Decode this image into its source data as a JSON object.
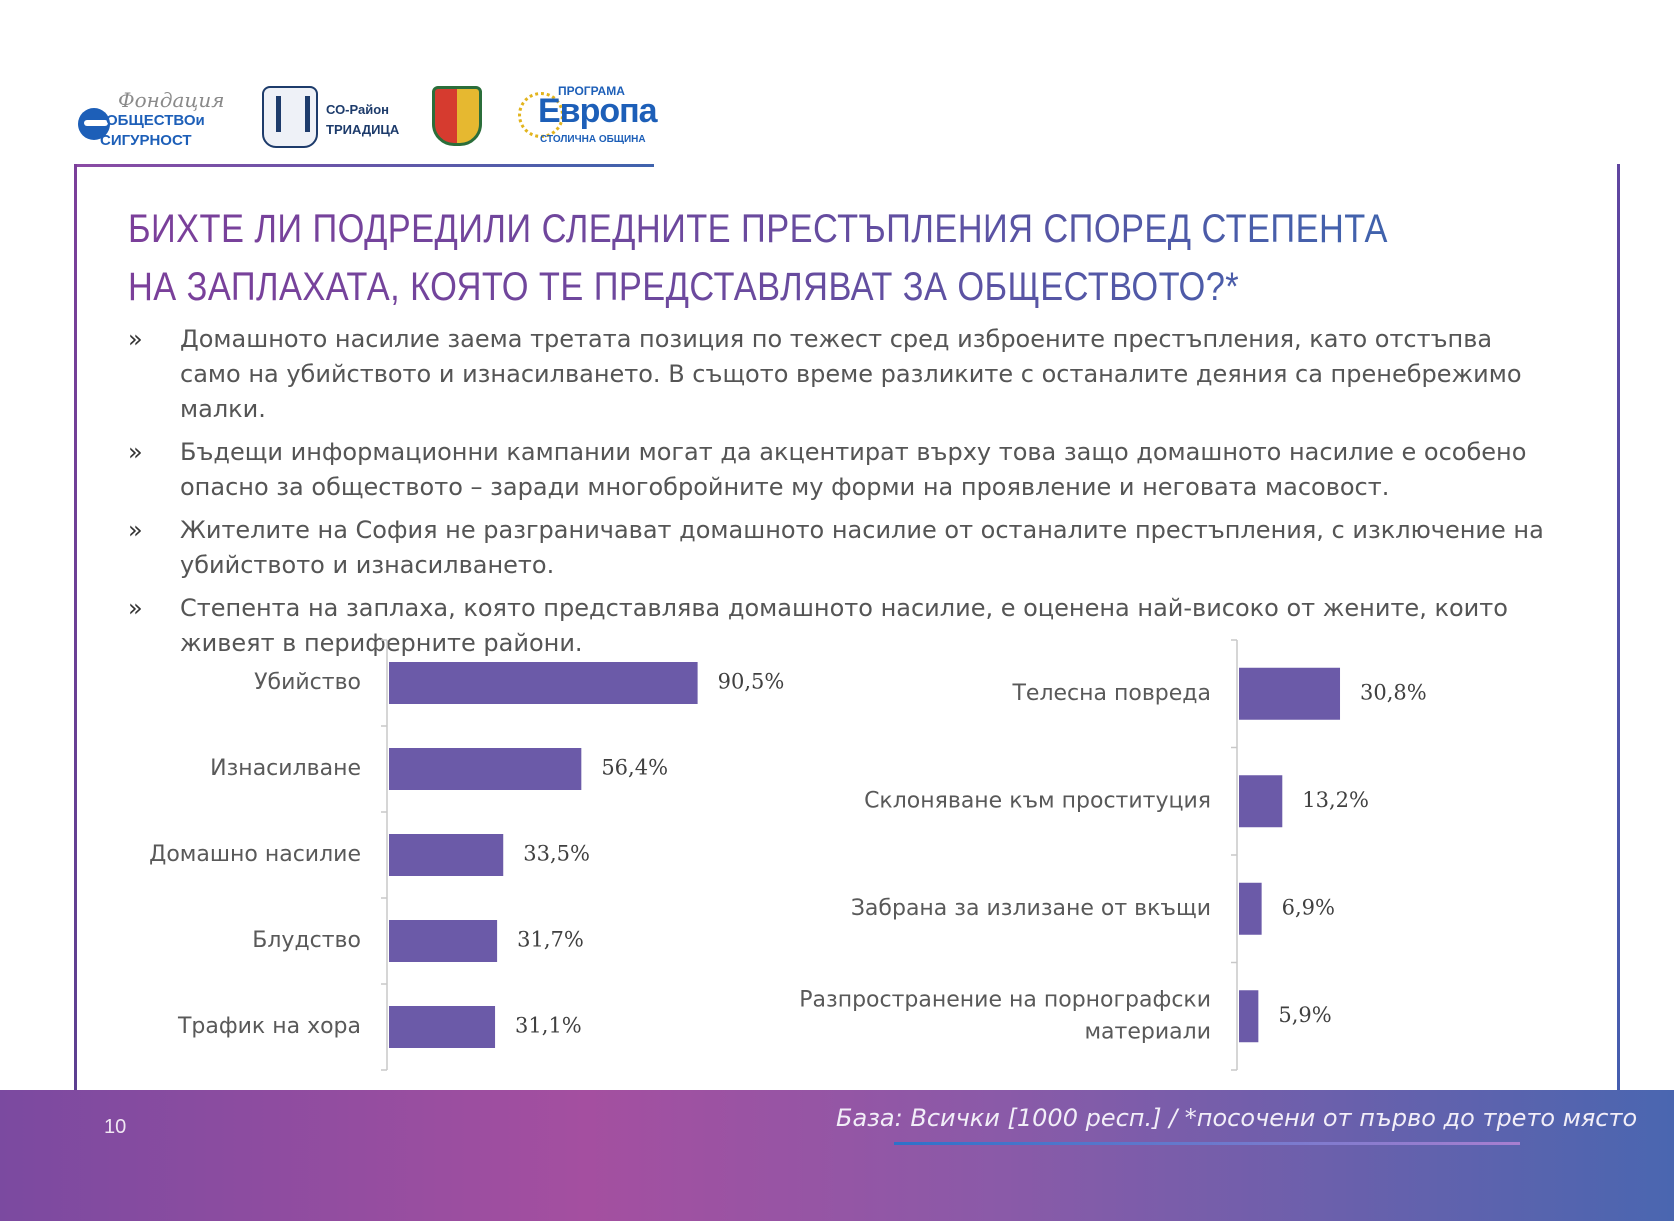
{
  "logos": {
    "foundation": {
      "script": "Фондация",
      "line1": "ОБЩЕСТВОи",
      "line2": "СИГУРНОСТ"
    },
    "district": {
      "line1": "СО-Район",
      "line2": "ТРИАДИЦА"
    },
    "europe": {
      "small": "ПРОГРАМА",
      "big": "Европа",
      "sub": "СТОЛИЧНА ОБЩИНА"
    }
  },
  "title": "БИХТЕ ЛИ ПОДРЕДИЛИ СЛЕДНИТЕ ПРЕСТЪПЛЕНИЯ СПОРЕД СТЕПЕНТА НА ЗАПЛАХАТА, КОЯТО ТЕ ПРЕДСТАВЛЯВАТ ЗА ОБЩЕСТВОТО?*",
  "bullet_marker": "»",
  "bullets": [
    "Домашното насилие заема третата позиция по тежест сред изброените престъпления, като отстъпва само на убийството и изнасилването. В същото време разликите с останалите деяния са пренебрежимо малки.",
    "Бъдещи информационни кампании могат да акцентират върху това защо домашното насилие е особено опасно за обществото – заради многобройните му форми на проявление и неговата масовост.",
    "Жителите на София не разграничават домашното насилие от останалите престъпления, с изключение на убийството и изнасилването.",
    "Степента на заплаха, която представлява домашното насилие, е оценена най-високо от жените, които живеят в периферните райони."
  ],
  "chart_data": [
    {
      "type": "bar",
      "orientation": "horizontal",
      "categories": [
        "Убийство",
        "Изнасилване",
        "Домашно насилие",
        "Блудство",
        "Трафик на хора"
      ],
      "values": [
        90.5,
        56.4,
        33.5,
        31.7,
        31.1
      ],
      "value_labels": [
        "90,5%",
        "56,4%",
        "33,5%",
        "31,7%",
        "31,1%"
      ],
      "unit": "%",
      "xlim": [
        0,
        100
      ],
      "color": "#6b5aa8"
    },
    {
      "type": "bar",
      "orientation": "horizontal",
      "categories": [
        "Телесна повреда",
        "Склоняване към проституция",
        "Забрана за излизане от вкъщи",
        "Разпространение на порнографски материали"
      ],
      "values": [
        30.8,
        13.2,
        6.9,
        5.9
      ],
      "value_labels": [
        "30,8%",
        "13,2%",
        "6,9%",
        "5,9%"
      ],
      "unit": "%",
      "xlim": [
        0,
        100
      ],
      "color": "#6b5aa8"
    }
  ],
  "footer": {
    "page_number": "10",
    "base_note": "База: Всички [1000 респ.] / *посочени от първо до трето място"
  }
}
